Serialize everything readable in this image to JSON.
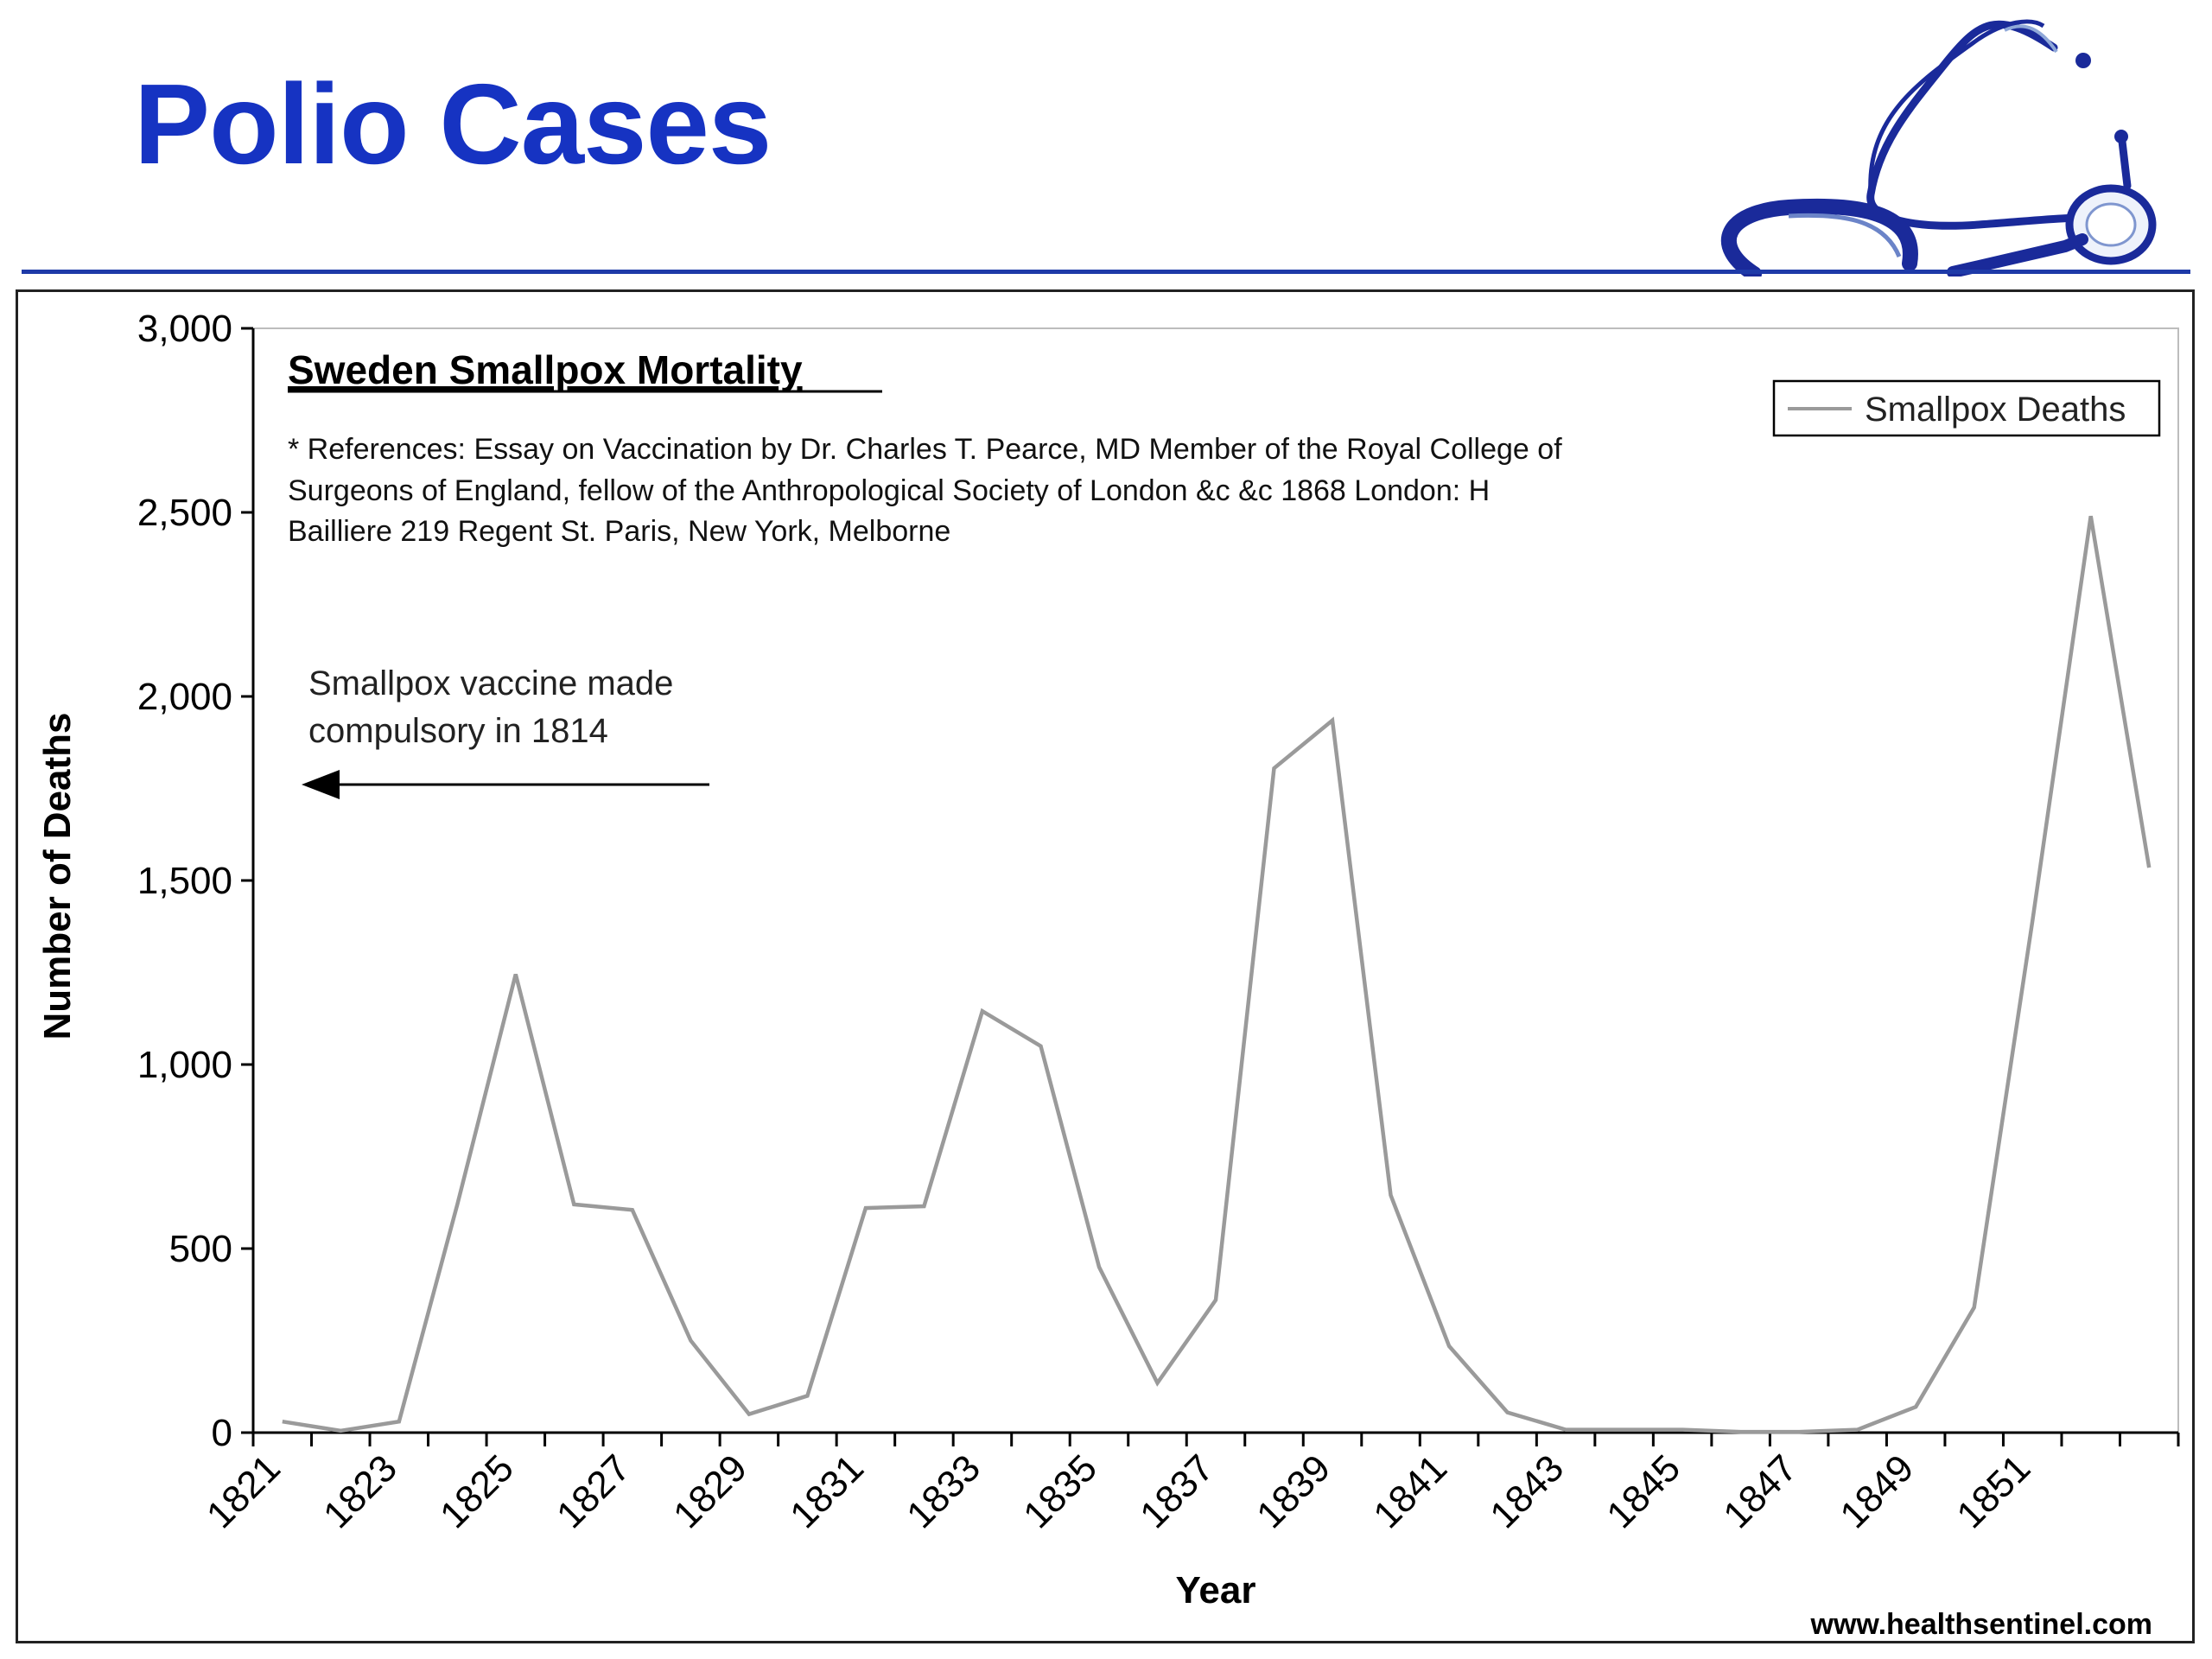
{
  "slide": {
    "title": "Polio Cases",
    "source": "www.healthsentinel.com"
  },
  "colors": {
    "title": "#1633c2",
    "rule": "#1e3aa8",
    "series_line": "#9a9a9a"
  },
  "chart_data": {
    "type": "line",
    "title": "Sweden Smallpox Mortality",
    "references": [
      "* References: Essay on Vaccination by Dr. Charles T. Pearce, MD Member of the Royal College of",
      "Surgeons of England, fellow  of the Anthropological Society of London &c &c 1868 London:  H",
      "Bailliere 219 Regent St. Paris, New  York, Melborne"
    ],
    "annotation": {
      "lines": [
        "Smallpox vaccine made",
        "compulsory in 1814"
      ],
      "arrow_direction": "left"
    },
    "xlabel": "Year",
    "ylabel": "Number of Deaths",
    "ylim": [
      0,
      3000
    ],
    "y_ticks": [
      0,
      500,
      1000,
      1500,
      2000,
      2500,
      3000
    ],
    "y_tick_labels": [
      "0",
      "500",
      "1,000",
      "1,500",
      "2,000",
      "2,500",
      "3,000"
    ],
    "x_tick_labels": [
      "1821",
      "1823",
      "1825",
      "1827",
      "1829",
      "1831",
      "1833",
      "1835",
      "1837",
      "1839",
      "1841",
      "1843",
      "1845",
      "1847",
      "1849",
      "1851"
    ],
    "x": [
      1821,
      1822,
      1823,
      1824,
      1825,
      1826,
      1827,
      1828,
      1829,
      1830,
      1831,
      1832,
      1833,
      1834,
      1835,
      1836,
      1837,
      1838,
      1839,
      1840,
      1841,
      1842,
      1843,
      1844,
      1845,
      1846,
      1847,
      1848,
      1849,
      1850,
      1851,
      1852,
      1853
    ],
    "legend_position": "top-right",
    "grid": false,
    "series": [
      {
        "name": "Smallpox Deaths",
        "values": [
          30,
          5,
          30,
          620,
          1245,
          620,
          605,
          250,
          50,
          100,
          610,
          615,
          1145,
          1050,
          450,
          135,
          360,
          1805,
          1935,
          645,
          235,
          55,
          8,
          8,
          8,
          2,
          2,
          8,
          70,
          340,
          1390,
          2490,
          1535
        ]
      }
    ]
  }
}
